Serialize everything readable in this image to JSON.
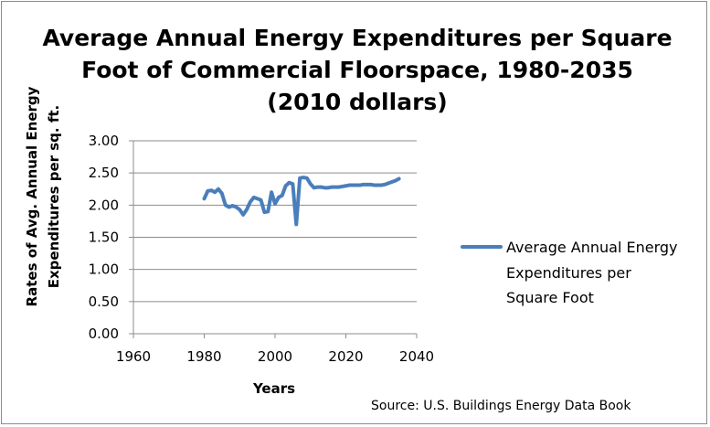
{
  "chart_data": {
    "type": "line",
    "title_lines": [
      "Average Annual Energy Expenditures per Square",
      "Foot of Commercial Floorspace, 1980-2035",
      "(2010 dollars)"
    ],
    "xlabel": "Years",
    "ylabel_lines": [
      "Rates of Avg. Annual Energy",
      "Expenditures per sq. ft."
    ],
    "xlim": [
      1960,
      2040
    ],
    "ylim": [
      0,
      3
    ],
    "x_ticks": [
      1960,
      1980,
      2000,
      2020,
      2040
    ],
    "y_ticks": [
      0,
      0.5,
      1,
      1.5,
      2,
      2.5,
      3
    ],
    "x_tick_labels": [
      "1960",
      "1980",
      "2000",
      "2020",
      "2040"
    ],
    "y_tick_labels": [
      "0.00",
      "0.50",
      "1.00",
      "1.50",
      "2.00",
      "2.50",
      "3.00"
    ],
    "grid": true,
    "legend_position": "right",
    "series": [
      {
        "name": "Average Annual Energy Expenditures per Square Foot",
        "legend_lines": [
          "Average Annual Energy",
          "Expenditures per",
          "Square Foot"
        ],
        "color": "#4a7ebb",
        "x": [
          1980,
          1981,
          1982,
          1983,
          1984,
          1985,
          1986,
          1987,
          1988,
          1989,
          1990,
          1991,
          1992,
          1993,
          1994,
          1995,
          1996,
          1997,
          1998,
          1999,
          2000,
          2001,
          2002,
          2003,
          2004,
          2005,
          2006,
          2007,
          2008,
          2009,
          2010,
          2011,
          2012,
          2013,
          2014,
          2015,
          2016,
          2017,
          2018,
          2019,
          2020,
          2021,
          2022,
          2023,
          2024,
          2025,
          2026,
          2027,
          2028,
          2029,
          2030,
          2031,
          2032,
          2033,
          2034,
          2035
        ],
        "values": [
          2.1,
          2.22,
          2.23,
          2.2,
          2.25,
          2.18,
          2.0,
          1.97,
          1.99,
          1.97,
          1.93,
          1.85,
          1.93,
          2.05,
          2.12,
          2.1,
          2.08,
          1.89,
          1.9,
          2.2,
          2.02,
          2.12,
          2.15,
          2.3,
          2.35,
          2.33,
          1.7,
          2.42,
          2.43,
          2.42,
          2.33,
          2.27,
          2.28,
          2.28,
          2.27,
          2.27,
          2.28,
          2.28,
          2.28,
          2.29,
          2.3,
          2.31,
          2.31,
          2.31,
          2.31,
          2.32,
          2.32,
          2.32,
          2.31,
          2.31,
          2.31,
          2.32,
          2.34,
          2.36,
          2.38,
          2.41
        ]
      }
    ]
  },
  "source": "Source: U.S. Buildings Energy Data Book"
}
